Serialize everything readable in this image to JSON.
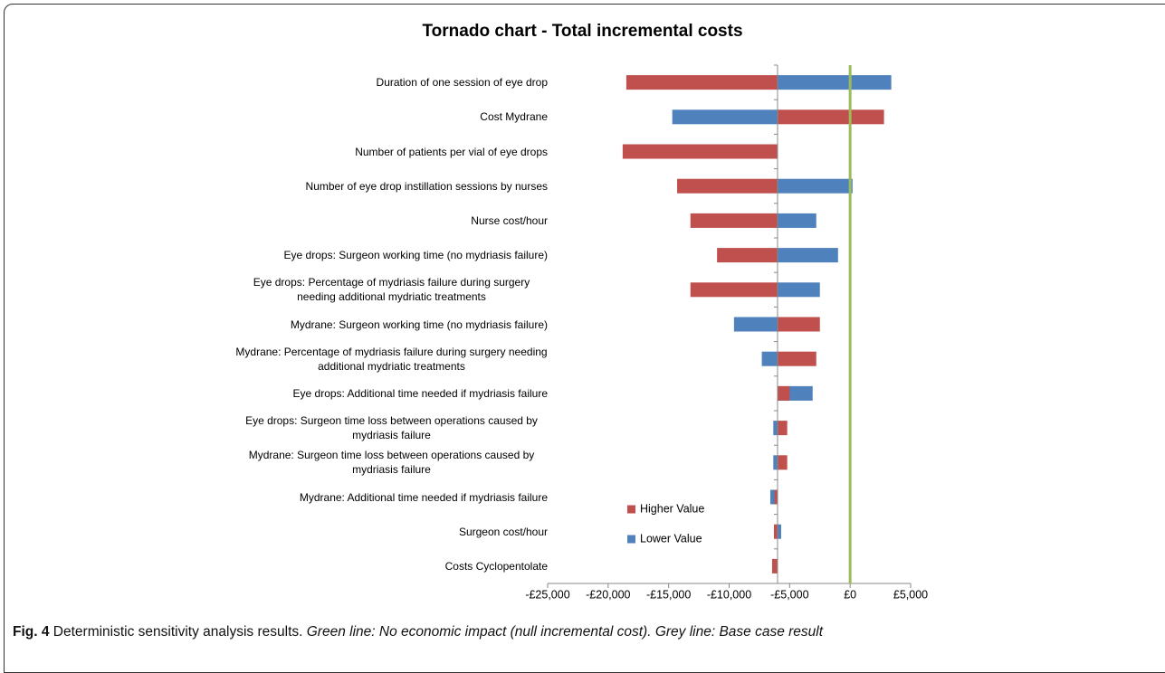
{
  "chart_data": {
    "type": "tornado",
    "title": "Tornado chart - Total incremental costs",
    "categories": [
      "Duration of one session of eye drop",
      "Cost Mydrane",
      "Number of patients per vial of eye drops",
      "Number of eye drop instillation sessions by nurses",
      "Nurse cost/hour",
      "Eye drops: Surgeon working time (no mydriasis failure)",
      "Eye drops: Percentage of mydriasis failure during surgery needing additional mydriatic treatments",
      "Mydrane: Surgeon working time (no mydriasis failure)",
      "Mydrane: Percentage of mydriasis failure during surgery needing additional mydriatic treatments",
      "Eye drops: Additional time needed if mydriasis failure",
      "Eye drops: Surgeon time loss between operations caused by mydriasis failure",
      "Mydrane: Surgeon time loss between operations caused by mydriasis failure",
      "Mydrane: Additional time needed if mydriasis failure",
      "Surgeon cost/hour",
      "Costs Cyclopentolate"
    ],
    "base": -6000,
    "null_line": 0,
    "null_color": "#9bbb59",
    "series": [
      {
        "name": "Higher Value",
        "color": "#c0504d",
        "values": [
          -18500,
          2800,
          -18800,
          -14300,
          -13200,
          -11000,
          -13200,
          -2500,
          -2800,
          -5000,
          -5200,
          -5200,
          -6250,
          -6300,
          -6450
        ]
      },
      {
        "name": "Lower Value",
        "color": "#4f81bd",
        "values": [
          3400,
          -14700,
          -6000,
          200,
          -2800,
          -1000,
          -2500,
          -9600,
          -7300,
          -3100,
          -6350,
          -6350,
          -6600,
          -5700,
          -6000
        ]
      }
    ],
    "xlim": [
      -25000,
      5000
    ],
    "xticks": [
      {
        "value": -25000,
        "label": "-£25,000"
      },
      {
        "value": -20000,
        "label": "-£20,000"
      },
      {
        "value": -15000,
        "label": "-£15,000"
      },
      {
        "value": -10000,
        "label": "-£10,000"
      },
      {
        "value": -5000,
        "label": "-£5,000"
      },
      {
        "value": 0,
        "label": "£0"
      },
      {
        "value": 5000,
        "label": "£5,000"
      }
    ],
    "caption": {
      "label": "Fig. 4",
      "text": "Deterministic sensitivity analysis results.",
      "note": "Green line: No economic impact (null incremental cost). Grey line: Base case result"
    }
  }
}
